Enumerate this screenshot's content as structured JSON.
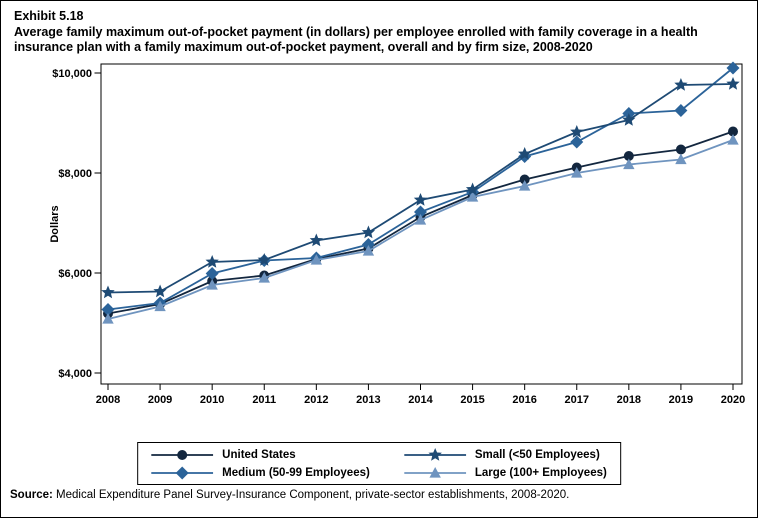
{
  "page": {
    "exhibit_label": "Exhibit 5.18",
    "title": "Average family maximum out-of-pocket payment (in dollars) per employee enrolled with family coverage in a health insurance plan with a family maximum out-of-pocket payment, overall and by firm size, 2008-2020",
    "source_label": "Source:",
    "source_text": " Medical Expenditure Panel Survey-Insurance Component, private-sector establishments, 2008-2020."
  },
  "chart_data": {
    "type": "line",
    "title": "Average family maximum out-of-pocket payment (in dollars) per employee enrolled with family coverage in a health insurance plan with a family maximum out-of-pocket payment, overall and by firm size, 2008-2020",
    "xlabel": "",
    "ylabel": "Dollars",
    "x": [
      2008,
      2009,
      2010,
      2011,
      2012,
      2013,
      2014,
      2015,
      2016,
      2017,
      2018,
      2019,
      2020
    ],
    "y_ticks": [
      {
        "label": "$4,000",
        "value": 4000
      },
      {
        "label": "$6,000",
        "value": 6000
      },
      {
        "label": "$8,000",
        "value": 8000
      },
      {
        "label": "$10,000",
        "value": 10000
      }
    ],
    "ylim": [
      3780,
      10180
    ],
    "grid": false,
    "legend_position": "bottom",
    "series": [
      {
        "name": "United States",
        "marker": "circle",
        "color": "#13273f",
        "values": [
          5190,
          5380,
          5840,
          5950,
          6280,
          6490,
          7120,
          7560,
          7870,
          8110,
          8340,
          8470,
          8830
        ]
      },
      {
        "name": "Medium (50-99 Employees)",
        "marker": "diamond",
        "color": "#2b6399",
        "values": [
          5270,
          5400,
          5990,
          6250,
          6300,
          6570,
          7220,
          7620,
          8330,
          8620,
          9190,
          9250,
          10100
        ]
      },
      {
        "name": "Small (<50 Employees)",
        "marker": "star",
        "color": "#1e4a74",
        "values": [
          5610,
          5630,
          6220,
          6260,
          6650,
          6810,
          7460,
          7670,
          8380,
          8820,
          9060,
          9760,
          9780
        ]
      },
      {
        "name": "Large (100+ Employees)",
        "marker": "triangle",
        "color": "#6f94bf",
        "values": [
          5080,
          5330,
          5760,
          5900,
          6260,
          6440,
          7060,
          7520,
          7740,
          8000,
          8170,
          8270,
          8660
        ]
      }
    ],
    "draw_order": [
      0,
      1,
      3,
      2
    ],
    "legend_order": [
      0,
      2,
      1,
      3
    ]
  }
}
